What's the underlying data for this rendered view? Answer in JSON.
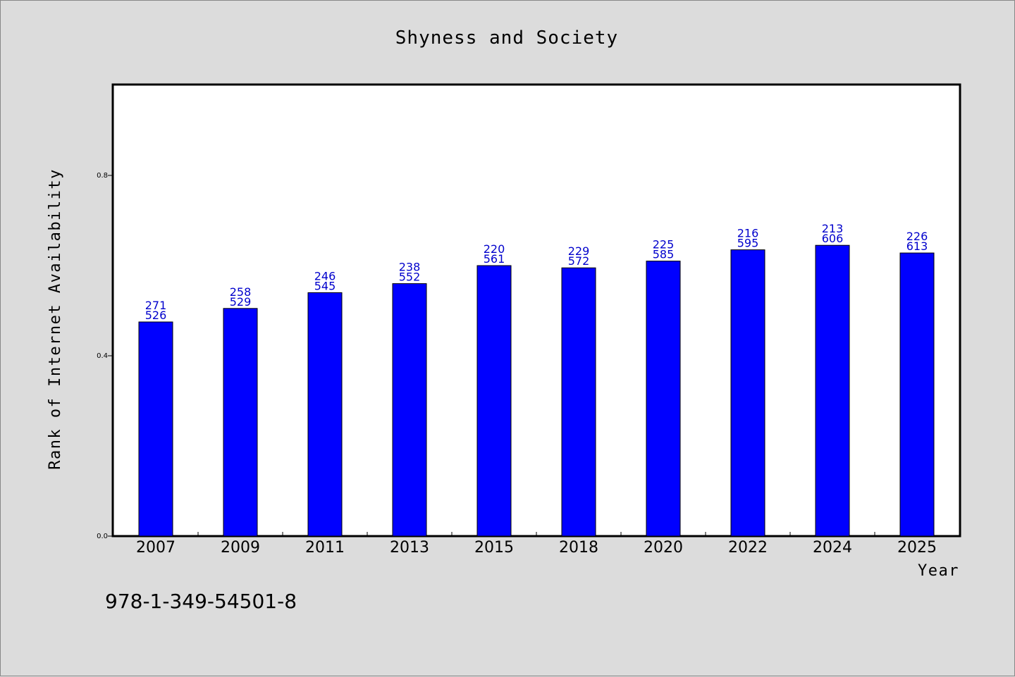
{
  "chart_data": {
    "type": "bar",
    "title": "Shyness and Society",
    "xlabel": "Year",
    "ylabel": "Rank of Internet Availability",
    "categories": [
      "2007",
      "2009",
      "2011",
      "2013",
      "2015",
      "2018",
      "2020",
      "2022",
      "2024",
      "2025"
    ],
    "values": [
      0.475,
      0.505,
      0.54,
      0.56,
      0.6,
      0.595,
      0.61,
      0.635,
      0.645,
      0.628
    ],
    "bar_labels_top": [
      "271",
      "258",
      "246",
      "238",
      "220",
      "229",
      "225",
      "216",
      "213",
      "226"
    ],
    "bar_labels_bottom": [
      "526",
      "529",
      "545",
      "552",
      "561",
      "572",
      "585",
      "595",
      "606",
      "613"
    ],
    "yticks": [
      "0.0",
      "0.4",
      "0.8"
    ],
    "ylim": [
      0,
      1.0
    ],
    "grid": false,
    "bar_color": "#0000ff",
    "label_color": "#0000cc"
  },
  "footer_text": "978-1-349-54501-8"
}
